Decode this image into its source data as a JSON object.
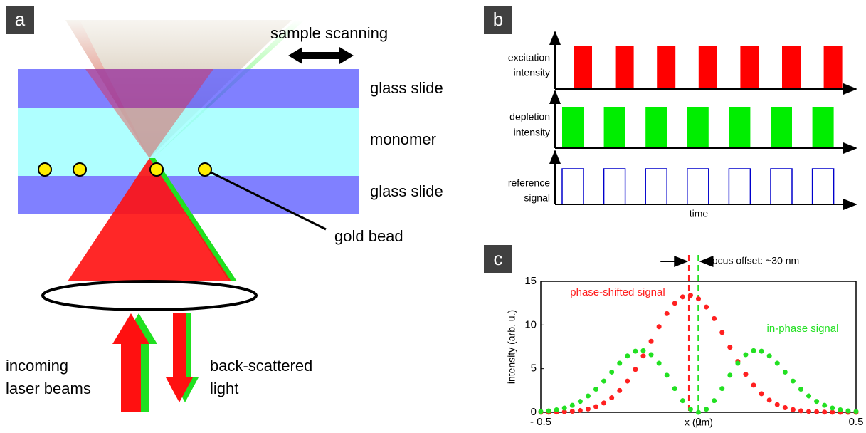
{
  "panel_a": {
    "label": "a",
    "scan_label": "sample scanning",
    "layers": [
      "glass slide",
      "monomer",
      "glass slide"
    ],
    "bead_label": "gold bead",
    "incoming_label": [
      "incoming",
      "laser beams"
    ],
    "scattered_label": [
      "back-scattered",
      "light"
    ]
  },
  "panel_b": {
    "label": "b",
    "rows": [
      [
        "excitation",
        "intensity"
      ],
      [
        "depletion",
        "intensity"
      ],
      [
        "reference",
        "signal"
      ]
    ],
    "x_label": "time"
  },
  "chart_data": {
    "type": "line",
    "panel_label": "c",
    "x_label": "x (µm)",
    "y_label": "intensity (arb. u.)",
    "xlim": [
      -0.5,
      0.5
    ],
    "ylim": [
      0,
      15
    ],
    "xticks": [
      {
        "value": -0.5,
        "label": "- 0.5"
      },
      0,
      0.5
    ],
    "yticks": [
      0,
      5,
      10,
      15
    ],
    "x": [
      -0.5,
      -0.475,
      -0.45,
      -0.425,
      -0.4,
      -0.375,
      -0.35,
      -0.325,
      -0.3,
      -0.275,
      -0.25,
      -0.225,
      -0.2,
      -0.175,
      -0.15,
      -0.125,
      -0.1,
      -0.075,
      -0.05,
      -0.025,
      0,
      0.025,
      0.05,
      0.075,
      0.1,
      0.125,
      0.15,
      0.175,
      0.2,
      0.225,
      0.25,
      0.275,
      0.3,
      0.325,
      0.35,
      0.375,
      0.4,
      0.425,
      0.45,
      0.475,
      0.5
    ],
    "series": [
      {
        "name": "phase-shifted signal",
        "color": "#ff2020",
        "values": [
          0.01,
          0.01,
          0.03,
          0.06,
          0.12,
          0.21,
          0.38,
          0.65,
          1.07,
          1.67,
          2.5,
          3.58,
          4.91,
          6.46,
          8.13,
          9.8,
          11.3,
          12.49,
          13.22,
          13.4,
          12.99,
          12.06,
          10.73,
          9.14,
          7.45,
          5.82,
          4.35,
          3.11,
          2.13,
          1.4,
          0.88,
          0.53,
          0.31,
          0.17,
          0.09,
          0.05,
          0.02,
          0.01,
          0,
          0,
          0
        ]
      },
      {
        "name": "in-phase signal",
        "color": "#22e022",
        "values": [
          0.09,
          0.16,
          0.29,
          0.49,
          0.8,
          1.25,
          1.87,
          2.65,
          3.58,
          4.61,
          5.62,
          6.46,
          7.0,
          7.06,
          6.6,
          5.62,
          4.25,
          2.72,
          1.33,
          0.35,
          0,
          0.35,
          1.33,
          2.72,
          4.25,
          5.62,
          6.6,
          7.06,
          7.0,
          6.46,
          5.62,
          4.61,
          3.58,
          2.65,
          1.87,
          1.25,
          0.8,
          0.49,
          0.29,
          0.16,
          0.09
        ]
      }
    ],
    "focus_lines": [
      {
        "x": -0.03,
        "color": "#ff2020"
      },
      {
        "x": 0,
        "color": "#22e022"
      }
    ],
    "annotation": "focus offset: ~30 nm"
  }
}
